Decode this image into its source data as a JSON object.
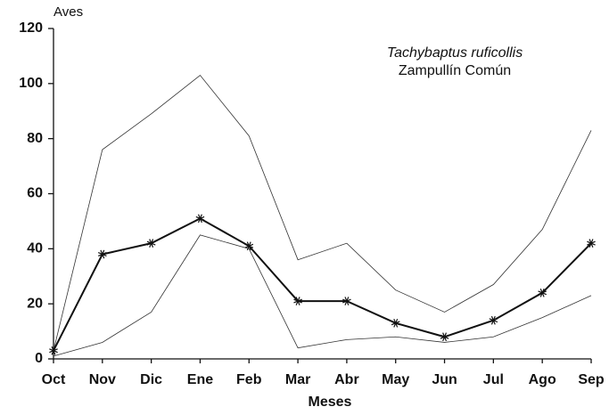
{
  "chart_data": {
    "type": "line",
    "title": "Tachybaptus ruficollis",
    "subtitle": "Zampullín Común",
    "y_label": "Aves",
    "x_label": "Meses",
    "categories": [
      "Oct",
      "Nov",
      "Dic",
      "Ene",
      "Feb",
      "Mar",
      "Abr",
      "May",
      "Jun",
      "Jul",
      "Ago",
      "Sep"
    ],
    "series": [
      {
        "color": "#333333",
        "width": 0.8,
        "values": [
          3,
          76,
          89,
          103,
          81,
          36,
          42,
          25,
          17,
          27,
          47,
          83
        ]
      },
      {
        "color": "#111111",
        "width": 2,
        "marker": "asterisk",
        "values": [
          3,
          38,
          42,
          51,
          41,
          21,
          21,
          13,
          8,
          14,
          24,
          42
        ]
      },
      {
        "color": "#333333",
        "width": 0.8,
        "values": [
          1,
          6,
          17,
          45,
          40,
          4,
          7,
          8,
          6,
          8,
          15,
          23
        ]
      }
    ],
    "ylim": [
      0,
      120
    ],
    "yticks": [
      0,
      20,
      40,
      60,
      80,
      100,
      120
    ],
    "grid": false
  }
}
